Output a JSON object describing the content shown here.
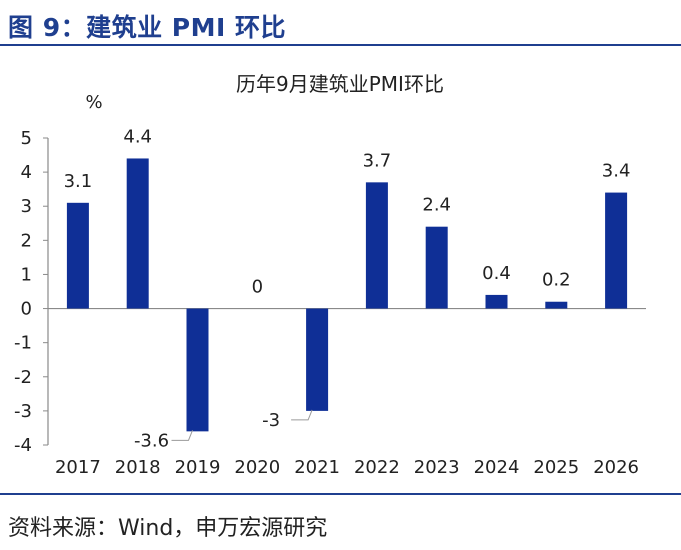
{
  "figure": {
    "header": "图 9：建筑业 PMI 环比",
    "source": "资料来源：Wind，申万宏源研究"
  },
  "chart_data": {
    "type": "bar",
    "title": "历年9月建筑业PMI环比",
    "ylabel": "%",
    "xlabel": "",
    "categories": [
      "2017",
      "2018",
      "2019",
      "2020",
      "2021",
      "2022",
      "2023",
      "2024",
      "2025",
      "2026"
    ],
    "values": [
      3.1,
      4.4,
      -3.6,
      0,
      -3,
      3.7,
      2.4,
      0.4,
      0.2,
      3.4
    ],
    "data_labels": [
      "3.1",
      "4.4",
      "-3.6",
      "0",
      "-3",
      "3.7",
      "2.4",
      "0.4",
      "0.2",
      "3.4"
    ],
    "yticks": [
      5,
      4,
      3,
      2,
      1,
      0,
      -1,
      -2,
      -3,
      -4
    ],
    "ylim": [
      -4,
      5
    ],
    "grid": false,
    "legend": "none",
    "bar_color": "#0f2f96",
    "axis_color": "#8a8a8a"
  }
}
